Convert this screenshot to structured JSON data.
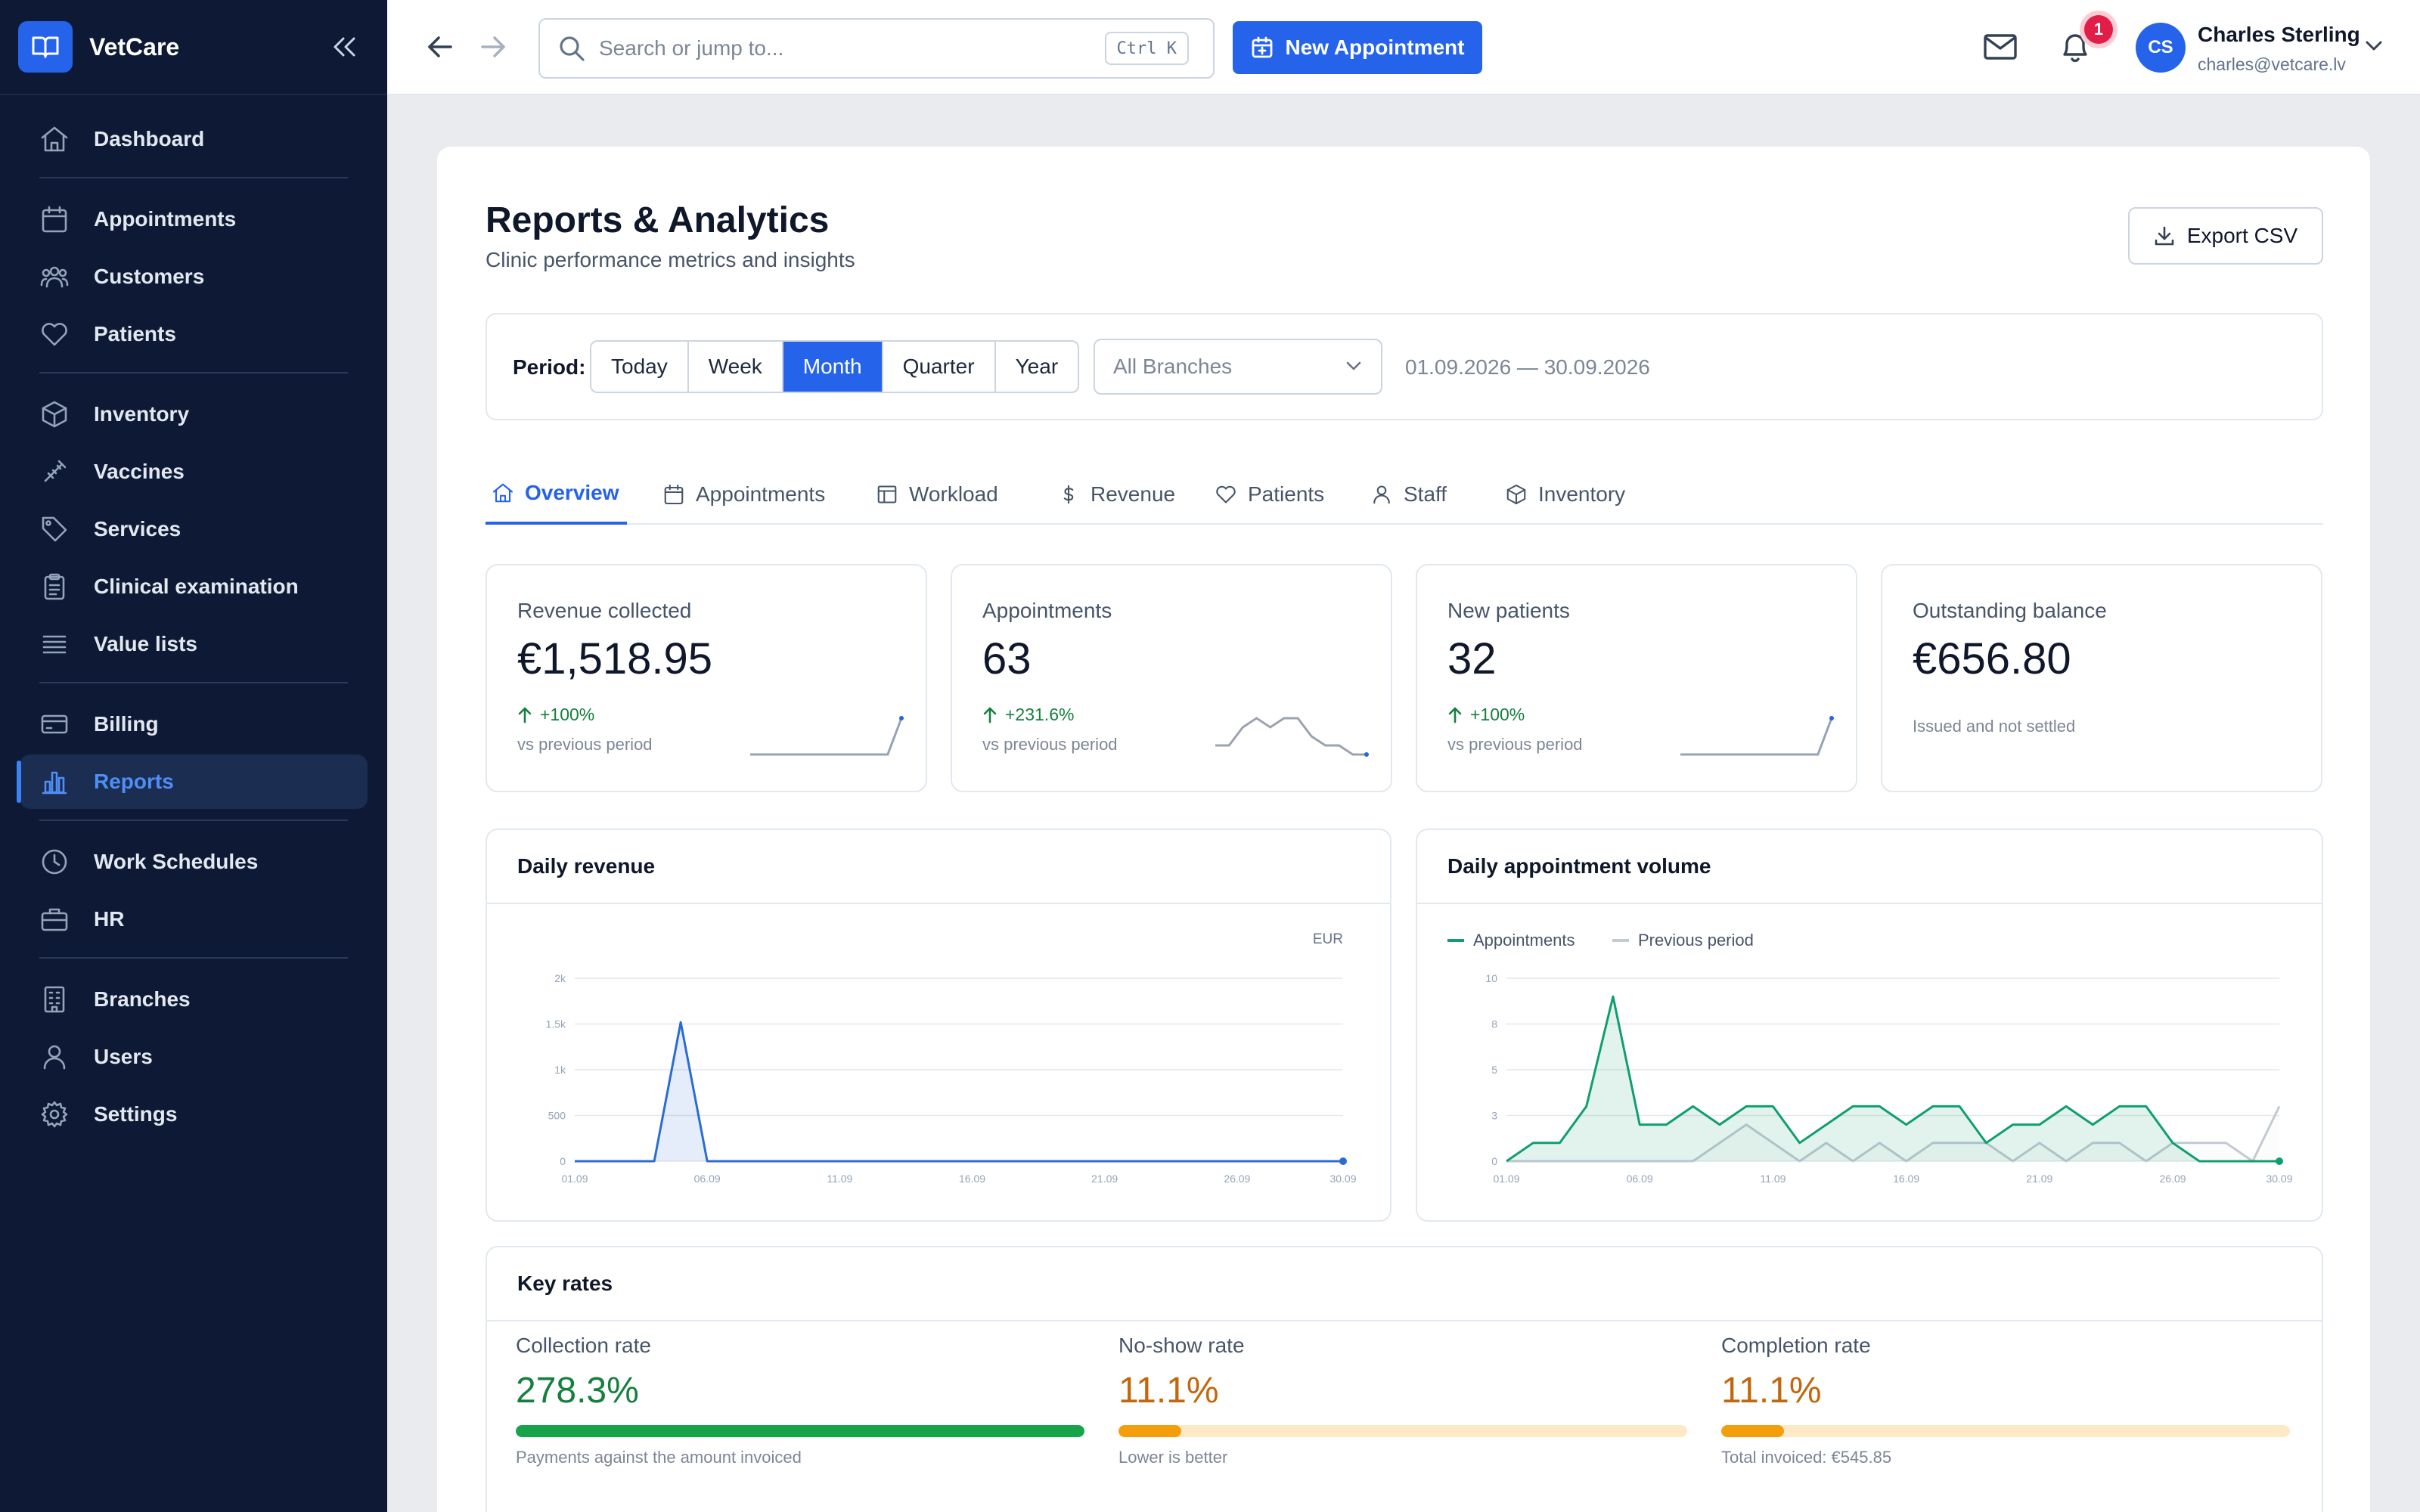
{
  "app": {
    "name": "VetCare"
  },
  "sidebar": {
    "groups": [
      [
        {
          "label": "Dashboard",
          "icon": "home-icon"
        }
      ],
      [
        {
          "label": "Appointments",
          "icon": "calendar-icon"
        },
        {
          "label": "Customers",
          "icon": "users-icon"
        },
        {
          "label": "Patients",
          "icon": "heart-icon"
        }
      ],
      [
        {
          "label": "Inventory",
          "icon": "box-icon"
        },
        {
          "label": "Vaccines",
          "icon": "syringe-icon"
        },
        {
          "label": "Services",
          "icon": "tag-icon"
        },
        {
          "label": "Clinical examination",
          "icon": "clipboard-icon"
        },
        {
          "label": "Value lists",
          "icon": "list-icon"
        }
      ],
      [
        {
          "label": "Billing",
          "icon": "credit-card-icon"
        },
        {
          "label": "Reports",
          "icon": "bar-chart-icon",
          "active": true
        }
      ],
      [
        {
          "label": "Work Schedules",
          "icon": "clock-icon"
        },
        {
          "label": "HR",
          "icon": "briefcase-icon"
        }
      ],
      [
        {
          "label": "Branches",
          "icon": "building-icon"
        },
        {
          "label": "Users",
          "icon": "user-icon"
        },
        {
          "label": "Settings",
          "icon": "gear-icon"
        }
      ]
    ]
  },
  "topbar": {
    "search_placeholder": "Search or jump to...",
    "search_shortcut": "Ctrl K",
    "new_appointment_label": "New Appointment",
    "notification_count": "1",
    "user": {
      "initials": "CS",
      "name": "Charles Sterling",
      "email": "charles@vetcare.lv"
    }
  },
  "page": {
    "title": "Reports & Analytics",
    "subtitle": "Clinic performance metrics and insights",
    "export_label": "Export CSV"
  },
  "filters": {
    "period_label": "Period:",
    "periods": [
      "Today",
      "Week",
      "Month",
      "Quarter",
      "Year"
    ],
    "selected_period": "Month",
    "branch": "All Branches",
    "date_range": "01.09.2026 — 30.09.2026"
  },
  "tabs": [
    {
      "label": "Overview",
      "icon": "home-icon",
      "active": true
    },
    {
      "label": "Appointments",
      "icon": "calendar-icon"
    },
    {
      "label": "Workload",
      "icon": "table-icon"
    },
    {
      "label": "Revenue",
      "icon": "dollar-icon"
    },
    {
      "label": "Patients",
      "icon": "heart-icon"
    },
    {
      "label": "Staff",
      "icon": "user-icon"
    },
    {
      "label": "Inventory",
      "icon": "box-icon"
    }
  ],
  "kpis": [
    {
      "label": "Revenue collected",
      "value": "€1,518.95",
      "change": "+100%",
      "note": "vs previous period",
      "spark": [
        0,
        0,
        0,
        0,
        0,
        0,
        0,
        0,
        0,
        0,
        0,
        1
      ]
    },
    {
      "label": "Appointments",
      "value": "63",
      "change": "+231.6%",
      "note": "vs previous period",
      "spark": [
        1,
        1,
        3,
        4,
        3,
        4,
        4,
        2,
        1,
        1,
        0,
        0
      ]
    },
    {
      "label": "New patients",
      "value": "32",
      "change": "+100%",
      "note": "vs previous period",
      "spark": [
        0,
        0,
        0,
        0,
        0,
        0,
        0,
        0,
        0,
        0,
        0,
        1
      ]
    },
    {
      "label": "Outstanding balance",
      "value": "€656.80",
      "change": "",
      "note": "Issued and not settled"
    }
  ],
  "charts": {
    "revenue": {
      "title": "Daily revenue",
      "unit_label": "EUR"
    },
    "appointments": {
      "title": "Daily appointment volume"
    }
  },
  "chart_data": [
    {
      "type": "area",
      "title": "Daily revenue",
      "ylabel": "EUR",
      "ylim": [
        0,
        2000
      ],
      "yticks": [
        "0",
        "500",
        "1k",
        "1.5k",
        "2k"
      ],
      "xticks": [
        "01.09",
        "06.09",
        "11.09",
        "16.09",
        "21.09",
        "26.09",
        "30.09"
      ],
      "x": [
        "01.09",
        "02.09",
        "03.09",
        "04.09",
        "05.09",
        "06.09",
        "07.09",
        "08.09",
        "09.09",
        "10.09",
        "11.09",
        "12.09",
        "13.09",
        "14.09",
        "15.09",
        "16.09",
        "17.09",
        "18.09",
        "19.09",
        "20.09",
        "21.09",
        "22.09",
        "23.09",
        "24.09",
        "25.09",
        "26.09",
        "27.09",
        "28.09",
        "29.09",
        "30.09"
      ],
      "series": [
        {
          "name": "Revenue",
          "color": "#2b6cd4",
          "values": [
            0,
            0,
            0,
            0,
            1519,
            0,
            0,
            0,
            0,
            0,
            0,
            0,
            0,
            0,
            0,
            0,
            0,
            0,
            0,
            0,
            0,
            0,
            0,
            0,
            0,
            0,
            0,
            0,
            0,
            0
          ]
        }
      ]
    },
    {
      "type": "area",
      "title": "Daily appointment volume",
      "ylim": [
        0,
        10
      ],
      "yticks": [
        "0",
        "3",
        "5",
        "8",
        "10"
      ],
      "xticks": [
        "01.09",
        "06.09",
        "11.09",
        "16.09",
        "21.09",
        "26.09",
        "30.09"
      ],
      "legend": "top-left",
      "x": [
        "01.09",
        "02.09",
        "03.09",
        "04.09",
        "05.09",
        "06.09",
        "07.09",
        "08.09",
        "09.09",
        "10.09",
        "11.09",
        "12.09",
        "13.09",
        "14.09",
        "15.09",
        "16.09",
        "17.09",
        "18.09",
        "19.09",
        "20.09",
        "21.09",
        "22.09",
        "23.09",
        "24.09",
        "25.09",
        "26.09",
        "27.09",
        "28.09",
        "29.09",
        "30.09"
      ],
      "series": [
        {
          "name": "Appointments",
          "color": "#0f9f6e",
          "values": [
            0,
            1,
            1,
            3,
            9,
            2,
            2,
            3,
            2,
            3,
            3,
            1,
            2,
            3,
            3,
            2,
            3,
            3,
            1,
            2,
            2,
            3,
            2,
            3,
            3,
            1,
            0,
            0,
            0,
            0
          ]
        },
        {
          "name": "Previous period",
          "color": "#c4c9d2",
          "values": [
            0,
            0,
            0,
            0,
            0,
            0,
            0,
            0,
            1,
            2,
            1,
            0,
            1,
            0,
            1,
            0,
            1,
            1,
            1,
            0,
            1,
            0,
            1,
            1,
            0,
            1,
            1,
            1,
            0,
            3
          ]
        }
      ]
    }
  ],
  "key_rates": {
    "title": "Key rates",
    "items": [
      {
        "label": "Collection rate",
        "value": "278.3%",
        "fraction": 1.0,
        "note": "Payments against the amount invoiced",
        "color": "#15803d",
        "bar": "#16a34a",
        "track": "#dcfce7"
      },
      {
        "label": "No-show rate",
        "value": "11.1%",
        "fraction": 0.111,
        "note": "Lower is better",
        "color": "#c2670c",
        "bar": "#f59e0b",
        "track": "#fde9c6"
      },
      {
        "label": "Completion rate",
        "value": "11.1%",
        "fraction": 0.111,
        "note": "Total invoiced: €545.85",
        "color": "#c2670c",
        "bar": "#f59e0b",
        "track": "#fde9c6"
      }
    ]
  }
}
